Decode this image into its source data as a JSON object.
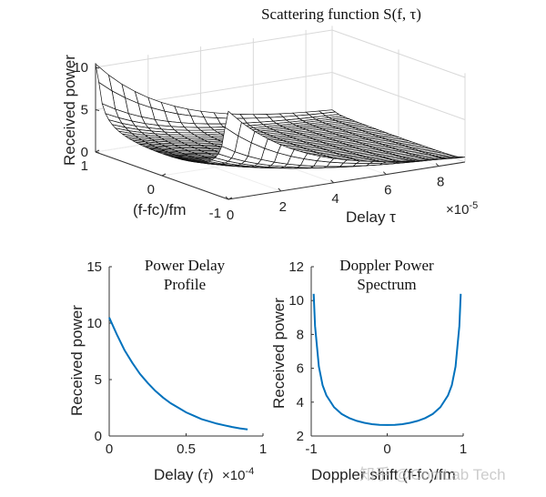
{
  "chart_data": [
    {
      "type": "surface",
      "title": "Scattering function S(f, τ)",
      "xlabel": "Delay τ",
      "x_multiplier": "×10^-5",
      "ylabel": "(f-fc)/fm",
      "zlabel": "Received power",
      "x_ticks": [
        "0",
        "2",
        "4",
        "6",
        "8"
      ],
      "y_ticks": [
        "1",
        "0",
        "-1"
      ],
      "z_ticks": [
        "0",
        "5",
        "10"
      ],
      "xlim": [
        0,
        9
      ],
      "ylim": [
        -1,
        1
      ],
      "zlim": [
        0,
        10.5
      ],
      "surface_note": "Product of Jakes Doppler spectrum and exponential power delay profile; peak ~10.4 at delay 0 and f=±1",
      "grid": true
    },
    {
      "type": "line",
      "title": [
        "Power Delay",
        "Profile"
      ],
      "xlabel": "Delay (τ)",
      "x_multiplier": "×10^-4",
      "ylabel": "Received power",
      "xlim": [
        0,
        1
      ],
      "ylim": [
        0,
        15
      ],
      "x_ticks": [
        "0",
        "0.5",
        "1"
      ],
      "y_ticks": [
        "0",
        "5",
        "10",
        "15"
      ],
      "color": "#0072BD",
      "series": [
        {
          "name": "PDP",
          "x": [
            0,
            0.05,
            0.1,
            0.15,
            0.2,
            0.25,
            0.3,
            0.35,
            0.4,
            0.45,
            0.5,
            0.55,
            0.6,
            0.65,
            0.7,
            0.75,
            0.8,
            0.85,
            0.9
          ],
          "values": [
            10.5,
            9.0,
            7.6,
            6.5,
            5.5,
            4.7,
            4.0,
            3.4,
            2.9,
            2.5,
            2.1,
            1.8,
            1.5,
            1.3,
            1.1,
            0.94,
            0.8,
            0.68,
            0.58
          ]
        }
      ]
    },
    {
      "type": "line",
      "title": [
        "Doppler Power",
        "Spectrum"
      ],
      "xlabel": "Doppler shift (f-fc)/fm",
      "ylabel": "Received power",
      "xlim": [
        -1,
        1
      ],
      "ylim": [
        2,
        12
      ],
      "x_ticks": [
        "-1",
        "0",
        "1"
      ],
      "y_ticks": [
        "2",
        "4",
        "6",
        "8",
        "10",
        "12"
      ],
      "color": "#0072BD",
      "series": [
        {
          "name": "Doppler spectrum",
          "x": [
            -0.968,
            -0.95,
            -0.9,
            -0.85,
            -0.8,
            -0.7,
            -0.6,
            -0.5,
            -0.4,
            -0.3,
            -0.2,
            -0.1,
            0,
            0.1,
            0.2,
            0.3,
            0.4,
            0.5,
            0.6,
            0.7,
            0.8,
            0.85,
            0.9,
            0.95,
            0.968
          ],
          "values": [
            10.4,
            8.5,
            6.1,
            5.0,
            4.4,
            3.7,
            3.3,
            3.06,
            2.89,
            2.78,
            2.7,
            2.66,
            2.65,
            2.66,
            2.7,
            2.78,
            2.89,
            3.06,
            3.3,
            3.7,
            4.4,
            5.0,
            6.1,
            8.5,
            10.4
          ]
        }
      ]
    }
  ],
  "watermark": "知乎 @ComLab Tech"
}
